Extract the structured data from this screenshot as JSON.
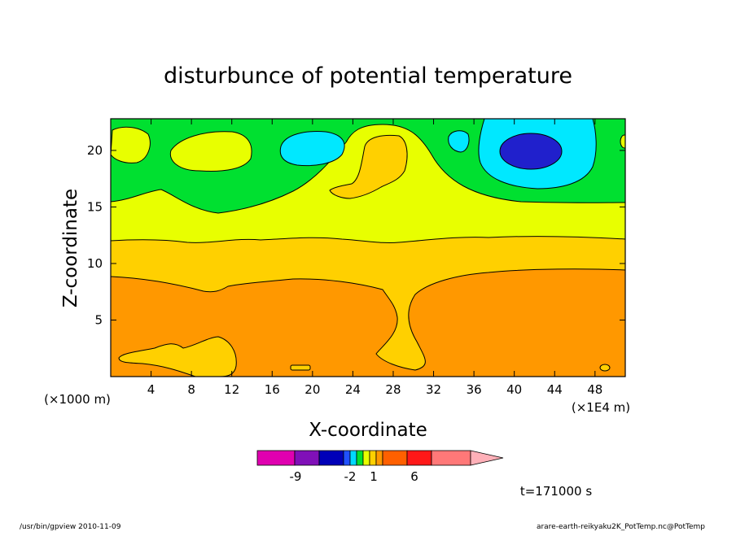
{
  "chart_data": {
    "type": "heatmap",
    "title": "disturbunce of potential temperature",
    "xlabel": "X-coordinate",
    "ylabel": "Z-coordinate",
    "x_unit_left": "(×1000 m)",
    "x_unit_right": "(×1E4 m)",
    "x_ticks": [
      "4",
      "8",
      "12",
      "16",
      "20",
      "24",
      "28",
      "32",
      "36",
      "40",
      "44",
      "48"
    ],
    "y_ticks": [
      "5",
      "10",
      "15",
      "20"
    ],
    "xlim": [
      0,
      51
    ],
    "ylim": [
      0,
      22.8
    ],
    "grid": false,
    "time_label": "t=171000 s",
    "colorbar": {
      "labels": [
        "-9",
        "-2",
        "1",
        "6"
      ],
      "colors": [
        "#e000b0",
        "#8010b8",
        "#0000b8",
        "#2050ff",
        "#00d8ff",
        "#00e030",
        "#e8ff00",
        "#ffd000",
        "#ff9800",
        "#ff6000",
        "#ff1818",
        "#ff7878",
        "#ffb0b8"
      ]
    },
    "fields": {
      "bands": [
        {
          "range": "below ~9 km",
          "level": "orange"
        },
        {
          "range": "~9-12 km",
          "level": "gold"
        },
        {
          "range": "~12-16 km",
          "level": "yellow"
        },
        {
          "range": "above ~16 km",
          "level": "green"
        }
      ],
      "features": [
        {
          "name": "minimum",
          "x": 42,
          "z": 20.2,
          "level": "blue"
        },
        {
          "name": "cyan cell",
          "x": 42,
          "z": 19.5,
          "level": "cyan"
        },
        {
          "name": "plume",
          "x": 29,
          "z": 12,
          "level": "gold"
        }
      ]
    }
  },
  "footer": {
    "left": "/usr/bin/gpview   2010-11-09",
    "right": "arare-earth-reikyaku2K_PotTemp.nc@PotTemp"
  }
}
